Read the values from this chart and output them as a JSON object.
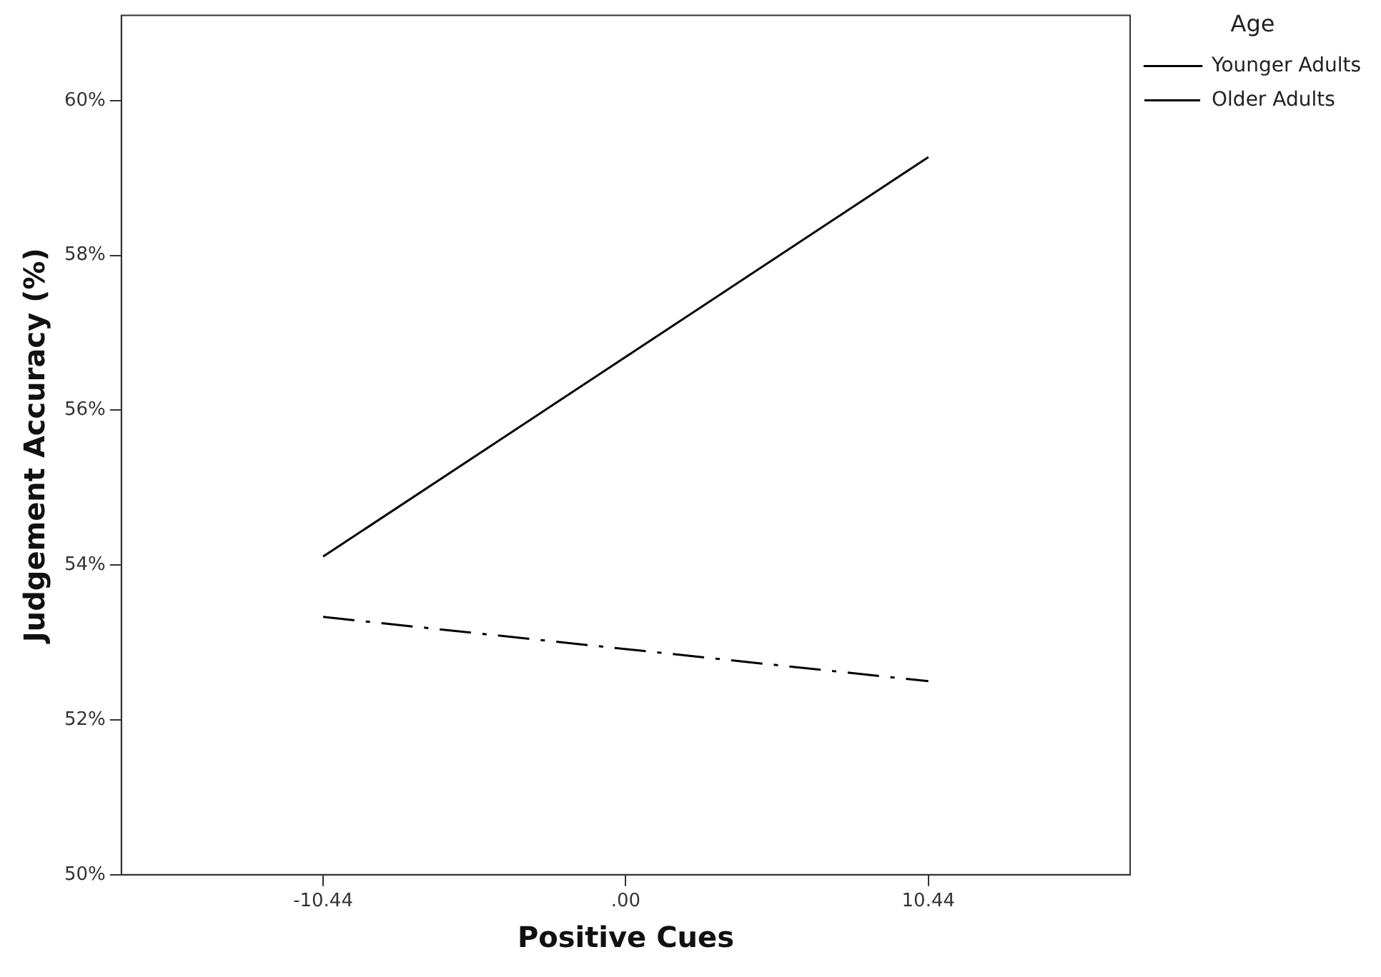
{
  "chart_data": {
    "type": "line",
    "xlabel": "Positive Cues",
    "ylabel": "Judgement Accuracy (%)",
    "legend_title": "Age",
    "x": [
      -10.44,
      10.44
    ],
    "series": [
      {
        "name": "Younger Adults",
        "color": "#000000",
        "values": [
          54.11,
          59.27
        ],
        "line_style": "solid"
      },
      {
        "name": "Older Adults",
        "color": "#000000",
        "values": [
          53.33,
          52.5
        ],
        "line_style": "dashdot"
      }
    ],
    "xlim": [
      -17.4,
      17.4
    ],
    "xticks": [
      {
        "value": -10.44,
        "label": "-10.44"
      },
      {
        "value": 0,
        "label": ".00"
      },
      {
        "value": 10.44,
        "label": "10.44"
      }
    ],
    "ylim": [
      50,
      61.1
    ],
    "yticks": [
      {
        "value": 50,
        "label": "50%"
      },
      {
        "value": 52,
        "label": "52%"
      },
      {
        "value": 54,
        "label": "54%"
      },
      {
        "value": 56,
        "label": "56%"
      },
      {
        "value": 58,
        "label": "58%"
      },
      {
        "value": 60,
        "label": "60%"
      }
    ],
    "grid": false,
    "legend": "top right",
    "marker": "none"
  }
}
